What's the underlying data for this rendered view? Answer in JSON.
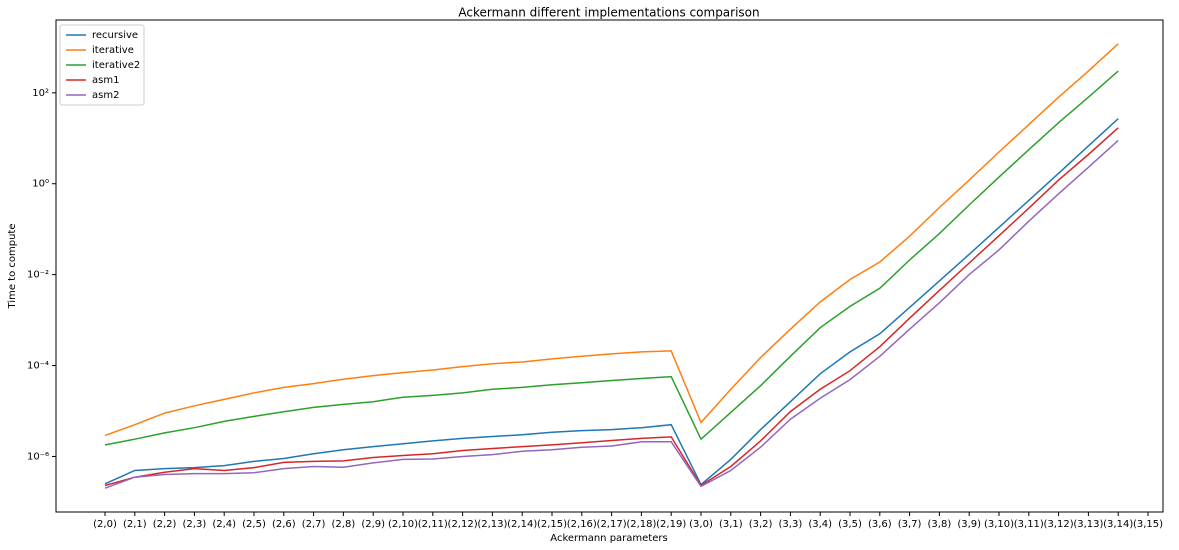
{
  "chart_data": {
    "type": "line",
    "title": "Ackermann different implementations comparison",
    "x_label": "Ackermann parameters",
    "y_label": "Time to compute",
    "log_y": true,
    "legend": "upper left",
    "categories": [
      "(2,0)",
      "(2,1)",
      "(2,2)",
      "(2,3)",
      "(2,4)",
      "(2,5)",
      "(2,6)",
      "(2,7)",
      "(2,8)",
      "(2,9)",
      "(2,10)",
      "(2,11)",
      "(2,12)",
      "(2,13)",
      "(2,14)",
      "(2,15)",
      "(2,16)",
      "(2,17)",
      "(2,18)",
      "(2,19)",
      "(3,0)",
      "(3,1)",
      "(3,2)",
      "(3,3)",
      "(3,4)",
      "(3,5)",
      "(3,6)",
      "(3,7)",
      "(3,8)",
      "(3,9)",
      "(3,10)",
      "(3,11)",
      "(3,12)",
      "(3,13)",
      "(3,14)",
      "(3,15)"
    ],
    "ylim": [
      6e-08,
      4000
    ],
    "yticks": [
      {
        "value": 1e-06,
        "label": "10⁻⁶"
      },
      {
        "value": 0.0001,
        "label": "10⁻⁴"
      },
      {
        "value": 0.01,
        "label": "10⁻²"
      },
      {
        "value": 1,
        "label": "10⁰"
      },
      {
        "value": 100,
        "label": "10²"
      }
    ],
    "series": [
      {
        "name": "recursive",
        "color": "#1f77b4",
        "values": [
          2.5e-07,
          4.9e-07,
          5.4e-07,
          5.7e-07,
          6.3e-07,
          7.8e-07,
          9e-07,
          1.15e-06,
          1.4e-06,
          1.65e-06,
          1.9e-06,
          2.2e-06,
          2.5e-06,
          2.75e-06,
          3e-06,
          3.4e-06,
          3.7e-06,
          3.9e-06,
          4.3e-06,
          5e-06,
          2.4e-07,
          8.6e-07,
          3.9e-06,
          1.6e-05,
          6.6e-05,
          0.0002,
          0.0005,
          0.0019,
          0.0073,
          0.028,
          0.11,
          0.43,
          1.7,
          6.8,
          27,
          null
        ]
      },
      {
        "name": "iterative",
        "color": "#ff7f0e",
        "values": [
          2.9e-06,
          5e-06,
          9e-06,
          1.3e-05,
          1.8e-05,
          2.5e-05,
          3.3e-05,
          4e-05,
          5e-05,
          6e-05,
          7e-05,
          8e-05,
          9.5e-05,
          0.00011,
          0.00012,
          0.00014,
          0.00016,
          0.00018,
          0.0002,
          0.00021,
          5.6e-06,
          3e-05,
          0.00015,
          0.00063,
          0.0025,
          0.0078,
          0.019,
          0.07,
          0.3,
          1.2,
          5,
          20,
          80,
          300,
          1200,
          null
        ]
      },
      {
        "name": "iterative2",
        "color": "#2ca02c",
        "values": [
          1.8e-06,
          2.4e-06,
          3.3e-06,
          4.3e-06,
          5.9e-06,
          7.6e-06,
          9.6e-06,
          1.2e-05,
          1.4e-05,
          1.6e-05,
          2e-05,
          2.2e-05,
          2.5e-05,
          3e-05,
          3.3e-05,
          3.8e-05,
          4.2e-05,
          4.7e-05,
          5.2e-05,
          5.7e-05,
          2.4e-06,
          9.3e-06,
          3.6e-05,
          0.00016,
          0.00068,
          0.002,
          0.005,
          0.021,
          0.08,
          0.34,
          1.4,
          5.6,
          22,
          80,
          300,
          null
        ]
      },
      {
        "name": "asm1",
        "color": "#d62728",
        "values": [
          2.3e-07,
          3.5e-07,
          4.5e-07,
          5.4e-07,
          4.9e-07,
          5.7e-07,
          7.4e-07,
          7.8e-07,
          8e-07,
          9.5e-07,
          1.05e-06,
          1.15e-06,
          1.35e-06,
          1.5e-06,
          1.65e-06,
          1.8e-06,
          2e-06,
          2.25e-06,
          2.5e-06,
          2.7e-06,
          2.3e-07,
          6e-07,
          2.2e-06,
          9.7e-06,
          3e-05,
          7.7e-05,
          0.00026,
          0.0011,
          0.0045,
          0.018,
          0.072,
          0.29,
          1.2,
          4.4,
          17,
          null
        ]
      },
      {
        "name": "asm2",
        "color": "#9467bd",
        "values": [
          2e-07,
          3.5e-07,
          4e-07,
          4.2e-07,
          4.2e-07,
          4.4e-07,
          5.4e-07,
          6e-07,
          5.8e-07,
          7.2e-07,
          8.6e-07,
          8.8e-07,
          1e-06,
          1.1e-06,
          1.3e-06,
          1.4e-06,
          1.6e-06,
          1.7e-06,
          2.1e-06,
          2.1e-06,
          2.2e-07,
          4.9e-07,
          1.6e-06,
          6.6e-06,
          1.9e-05,
          4.9e-05,
          0.00016,
          0.00063,
          0.0024,
          0.01,
          0.035,
          0.15,
          0.6,
          2.3,
          9,
          null
        ]
      }
    ]
  }
}
